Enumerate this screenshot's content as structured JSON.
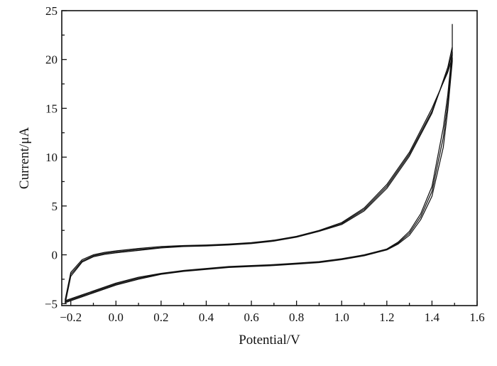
{
  "chart_data": {
    "type": "line",
    "title": "",
    "xlabel": "Potential/V",
    "ylabel": "Current/μA",
    "xlim": [
      -0.24,
      1.6
    ],
    "ylim": [
      -5.2,
      25
    ],
    "xticks": [
      -0.2,
      0.0,
      0.2,
      0.4,
      0.6,
      0.8,
      1.0,
      1.2,
      1.4,
      1.6
    ],
    "xtick_labels": [
      "−0.2",
      "0.0",
      "0.2",
      "0.4",
      "0.6",
      "0.8",
      "1.0",
      "1.2",
      "1.4",
      "1.6"
    ],
    "yticks": [
      -5,
      0,
      5,
      10,
      15,
      20,
      25
    ],
    "ytick_labels": [
      "−5",
      "0",
      "5",
      "10",
      "15",
      "20",
      "25"
    ],
    "grid": false,
    "legend": "none",
    "line_color": "#111111",
    "series": [
      {
        "x": [
          -0.225,
          -0.2,
          -0.15,
          -0.1,
          -0.05,
          0.0,
          0.1,
          0.2,
          0.3,
          0.4,
          0.5,
          0.6,
          0.7,
          0.8,
          0.9,
          1.0,
          1.1,
          1.2,
          1.3,
          1.4,
          1.47,
          1.49,
          1.49,
          1.47,
          1.45,
          1.4,
          1.35,
          1.3,
          1.25,
          1.2,
          1.15,
          1.1,
          1.0,
          0.9,
          0.8,
          0.7,
          0.6,
          0.5,
          0.4,
          0.3,
          0.2,
          0.1,
          0.0,
          -0.1,
          -0.15,
          -0.2,
          -0.225
        ],
        "y": [
          -4.6,
          -1.8,
          -0.5,
          0.0,
          0.25,
          0.4,
          0.65,
          0.85,
          0.95,
          1.0,
          1.1,
          1.25,
          1.5,
          1.9,
          2.5,
          3.3,
          4.8,
          7.2,
          10.5,
          15.0,
          18.7,
          20.2,
          19.8,
          14.8,
          11.0,
          6.0,
          3.6,
          2.0,
          1.1,
          0.5,
          0.2,
          -0.1,
          -0.5,
          -0.8,
          -0.95,
          -1.1,
          -1.2,
          -1.3,
          -1.5,
          -1.7,
          -2.0,
          -2.5,
          -3.1,
          -3.9,
          -4.3,
          -4.7,
          -4.9
        ]
      },
      {
        "x": [
          -0.225,
          -0.2,
          -0.15,
          -0.1,
          -0.05,
          0.0,
          0.1,
          0.2,
          0.3,
          0.4,
          0.5,
          0.6,
          0.7,
          0.8,
          0.9,
          1.0,
          1.1,
          1.2,
          1.3,
          1.4,
          1.47,
          1.49,
          1.49,
          1.47,
          1.45,
          1.4,
          1.35,
          1.3,
          1.25,
          1.2,
          1.15,
          1.1,
          1.0,
          0.9,
          0.8,
          0.7,
          0.6,
          0.5,
          0.4,
          0.3,
          0.2,
          0.1,
          0.0,
          -0.1,
          -0.15,
          -0.2,
          -0.225
        ],
        "y": [
          -4.8,
          -2.0,
          -0.65,
          -0.1,
          0.15,
          0.3,
          0.55,
          0.75,
          0.9,
          0.95,
          1.05,
          1.2,
          1.45,
          1.85,
          2.45,
          3.2,
          4.65,
          7.0,
          10.3,
          14.7,
          18.9,
          20.8,
          20.4,
          15.6,
          12.0,
          6.5,
          3.9,
          2.2,
          1.2,
          0.55,
          0.25,
          -0.05,
          -0.45,
          -0.75,
          -0.9,
          -1.05,
          -1.15,
          -1.25,
          -1.45,
          -1.65,
          -1.95,
          -2.4,
          -3.0,
          -3.8,
          -4.2,
          -4.6,
          -4.8
        ]
      },
      {
        "x": [
          -0.225,
          -0.2,
          -0.15,
          -0.1,
          -0.05,
          0.0,
          0.1,
          0.2,
          0.3,
          0.4,
          0.5,
          0.6,
          0.7,
          0.8,
          0.9,
          1.0,
          1.1,
          1.2,
          1.3,
          1.4,
          1.47,
          1.49,
          1.49,
          1.49,
          1.47,
          1.45,
          1.4,
          1.35,
          1.3,
          1.25,
          1.2,
          1.15,
          1.1,
          1.0,
          0.9,
          0.8,
          0.7,
          0.6,
          0.5,
          0.4,
          0.3,
          0.2,
          0.1,
          0.0,
          -0.1,
          -0.15,
          -0.2,
          -0.225
        ],
        "y": [
          -5.0,
          -2.2,
          -0.75,
          -0.2,
          0.05,
          0.2,
          0.45,
          0.7,
          0.85,
          0.9,
          1.0,
          1.15,
          1.4,
          1.8,
          2.4,
          3.1,
          4.5,
          6.8,
          10.1,
          14.5,
          19.2,
          21.3,
          23.6,
          21.0,
          16.4,
          13.0,
          7.0,
          4.2,
          2.4,
          1.3,
          0.6,
          0.3,
          0.0,
          -0.4,
          -0.7,
          -0.85,
          -1.0,
          -1.1,
          -1.2,
          -1.4,
          -1.6,
          -1.9,
          -2.3,
          -2.9,
          -3.7,
          -4.1,
          -4.5,
          -4.7
        ]
      }
    ]
  }
}
